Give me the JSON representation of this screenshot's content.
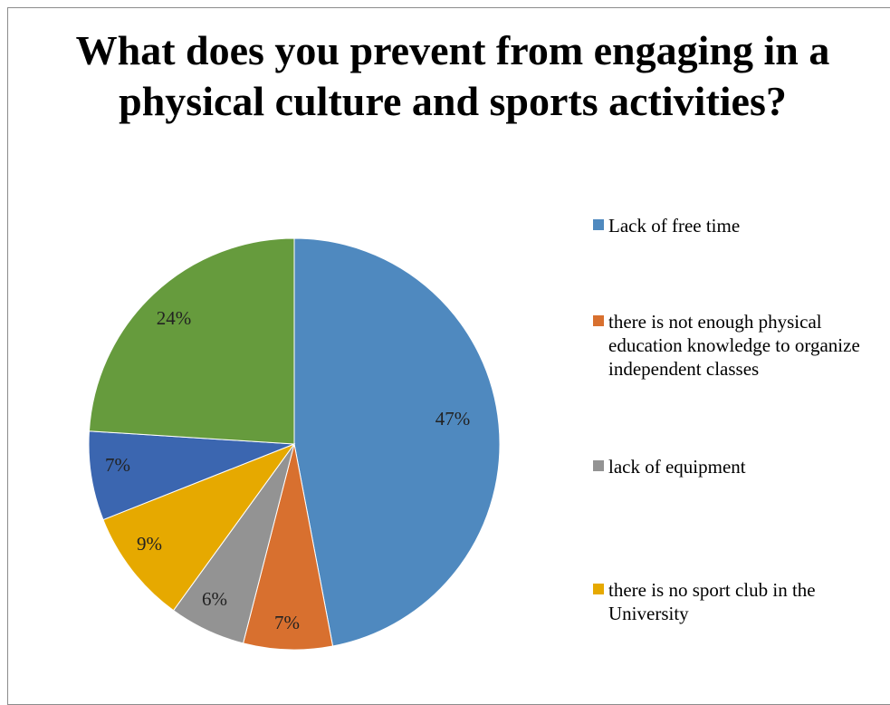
{
  "chart_data": {
    "type": "pie",
    "title": "What does  you prevent  from engaging in a physical culture and sports activities?",
    "categories": [
      "Lack of free time",
      "there is not enough physical education knowledge to organize independent classes",
      "lack of equipment",
      "there is no sport club in the University",
      "",
      ""
    ],
    "values": [
      47,
      7,
      6,
      9,
      7,
      24
    ],
    "labels": [
      "47%",
      "7%",
      "6%",
      "9%",
      "7%",
      "24%"
    ],
    "colors": [
      "#4f89bf",
      "#d8702f",
      "#939393",
      "#e6a900",
      "#3b66b0",
      "#669b3d"
    ],
    "legend_position": "right"
  }
}
